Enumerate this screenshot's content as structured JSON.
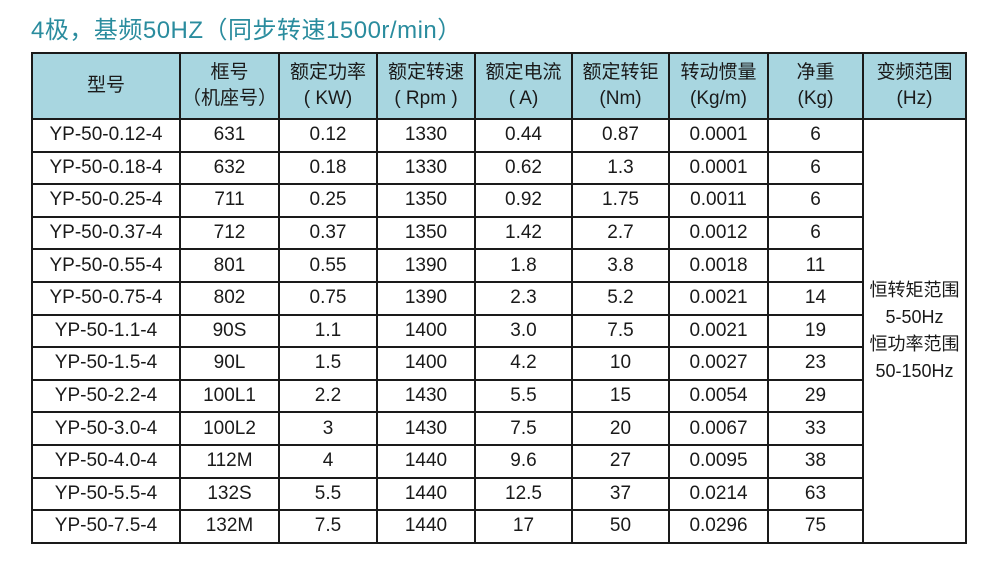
{
  "title": "4极，基频50HZ（同步转速1500r/min）",
  "table": {
    "columns": [
      {
        "line1": "型号",
        "line2": ""
      },
      {
        "line1": "框号",
        "line2": "（机座号）"
      },
      {
        "line1": "额定功率",
        "line2": "( KW)"
      },
      {
        "line1": "额定转速",
        "line2": "( Rpm )"
      },
      {
        "line1": "额定电流",
        "line2": "( A)"
      },
      {
        "line1": "额定转钜",
        "line2": "(Nm)"
      },
      {
        "line1": "转动惯量",
        "line2": "(Kg/m)"
      },
      {
        "line1": "净重",
        "line2": "(Kg)"
      },
      {
        "line1": "变频范围",
        "line2": "(Hz)"
      }
    ],
    "rows": [
      [
        "YP-50-0.12-4",
        "631",
        "0.12",
        "1330",
        "0.44",
        "0.87",
        "0.0001",
        "6"
      ],
      [
        "YP-50-0.18-4",
        "632",
        "0.18",
        "1330",
        "0.62",
        "1.3",
        "0.0001",
        "6"
      ],
      [
        "YP-50-0.25-4",
        "711",
        "0.25",
        "1350",
        "0.92",
        "1.75",
        "0.0011",
        "6"
      ],
      [
        "YP-50-0.37-4",
        "712",
        "0.37",
        "1350",
        "1.42",
        "2.7",
        "0.0012",
        "6"
      ],
      [
        "YP-50-0.55-4",
        "801",
        "0.55",
        "1390",
        "1.8",
        "3.8",
        "0.0018",
        "11"
      ],
      [
        "YP-50-0.75-4",
        "802",
        "0.75",
        "1390",
        "2.3",
        "5.2",
        "0.0021",
        "14"
      ],
      [
        "YP-50-1.1-4",
        "90S",
        "1.1",
        "1400",
        "3.0",
        "7.5",
        "0.0021",
        "19"
      ],
      [
        "YP-50-1.5-4",
        "90L",
        "1.5",
        "1400",
        "4.2",
        "10",
        "0.0027",
        "23"
      ],
      [
        "YP-50-2.2-4",
        "100L1",
        "2.2",
        "1430",
        "5.5",
        "15",
        "0.0054",
        "29"
      ],
      [
        "YP-50-3.0-4",
        "100L2",
        "3",
        "1430",
        "7.5",
        "20",
        "0.0067",
        "33"
      ],
      [
        "YP-50-4.0-4",
        "112M",
        "4",
        "1440",
        "9.6",
        "27",
        "0.0095",
        "38"
      ],
      [
        "YP-50-5.5-4",
        "132S",
        "5.5",
        "1440",
        "12.5",
        "37",
        "0.0214",
        "63"
      ],
      [
        "YP-50-7.5-4",
        "132M",
        "7.5",
        "1440",
        "17",
        "50",
        "0.0296",
        "75"
      ]
    ],
    "merged_cell_lines": [
      "恒转矩范围",
      "5-50Hz",
      "恒功率范围",
      "50-150Hz"
    ]
  },
  "colors": {
    "title_text": "#2a8c9e",
    "header_bg": "#a8d6e0",
    "border": "#1a1a1a",
    "body_text": "#1a1a1a"
  }
}
